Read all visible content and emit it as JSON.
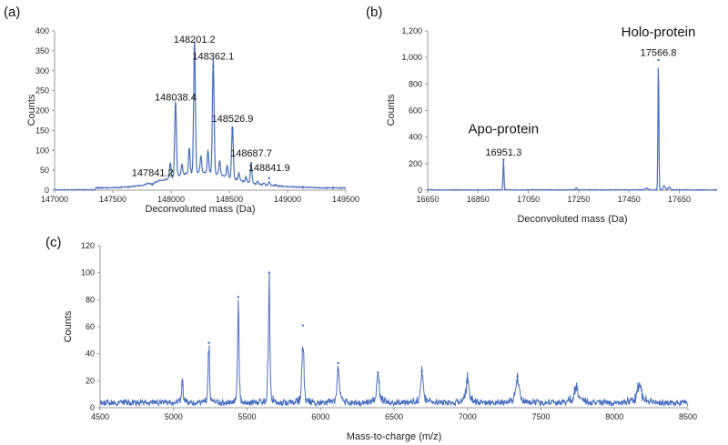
{
  "chart_data": [
    {
      "panel": "(a)",
      "type": "line",
      "xlabel": "Deconvoluted mass (Da)",
      "ylabel": "Counts",
      "xlim": [
        147000,
        149500
      ],
      "ylim": [
        0,
        400
      ],
      "xticks": [
        "147000",
        "147500",
        "148000",
        "148500",
        "149000",
        "149500"
      ],
      "yticks": [
        "0",
        "50",
        "100",
        "150",
        "200",
        "250",
        "300",
        "350",
        "400"
      ],
      "color": "#4a6fc1",
      "peaks": [
        {
          "x": 147841.2,
          "y": 15
        },
        {
          "x": 148038.4,
          "y": 210
        },
        {
          "x": 148201.2,
          "y": 355
        },
        {
          "x": 148362.1,
          "y": 310
        },
        {
          "x": 148526.9,
          "y": 155
        },
        {
          "x": 148687.7,
          "y": 68
        },
        {
          "x": 148841.9,
          "y": 30
        }
      ],
      "annotations": [
        {
          "text": "147841.2",
          "x": 147841.2,
          "y": 35
        },
        {
          "text": "148038.4",
          "x": 148038.4,
          "y": 225
        },
        {
          "text": "148201.2",
          "x": 148201.2,
          "y": 370
        },
        {
          "text": "148362.1",
          "x": 148362.1,
          "y": 328
        },
        {
          "text": "148526.9",
          "x": 148526.9,
          "y": 172
        },
        {
          "text": "148687.7",
          "x": 148687.7,
          "y": 85
        },
        {
          "text": "148841.9",
          "x": 148841.9,
          "y": 48
        }
      ]
    },
    {
      "panel": "(b)",
      "type": "line",
      "xlabel": "Deconvoluted mass (Da)",
      "ylabel": "Counts",
      "xlim": [
        16650,
        17800
      ],
      "ylim": [
        0,
        1200
      ],
      "xticks": [
        "16650",
        "16850",
        "17050",
        "17250",
        "17450",
        "17650"
      ],
      "yticks": [
        "0",
        "200",
        "400",
        "600",
        "800",
        "1,000",
        "1,200"
      ],
      "color": "#4a6fc1",
      "peaks": [
        {
          "x": 16951.3,
          "y": 230
        },
        {
          "x": 17566.8,
          "y": 980
        }
      ],
      "annotations": [
        {
          "text": "Apo-protein",
          "x": 16951.3,
          "y": 430,
          "size": "large"
        },
        {
          "text": "16951.3",
          "x": 16951.3,
          "y": 260,
          "size": "small"
        },
        {
          "text": "Holo-protein",
          "x": 17566.8,
          "y": 1160,
          "size": "large"
        },
        {
          "text": "17566.8",
          "x": 17566.8,
          "y": 1010,
          "size": "small"
        }
      ]
    },
    {
      "panel": "(c)",
      "type": "line",
      "xlabel": "Mass-to-charge (m/z)",
      "ylabel": "Counts",
      "xlim": [
        4500,
        8500
      ],
      "ylim": [
        0,
        120
      ],
      "xticks": [
        "4500",
        "5000",
        "5500",
        "6000",
        "6500",
        "7000",
        "7500",
        "8000",
        "8500"
      ],
      "yticks": [
        "0",
        "20",
        "40",
        "60",
        "80",
        "100",
        "120"
      ],
      "color": "#4a6fc1",
      "peaks": [
        {
          "x": 5060,
          "y": 17
        },
        {
          "x": 5240,
          "y": 48
        },
        {
          "x": 5440,
          "y": 82
        },
        {
          "x": 5650,
          "y": 100
        },
        {
          "x": 5880,
          "y": 61
        },
        {
          "x": 6120,
          "y": 33
        },
        {
          "x": 6390,
          "y": 26
        },
        {
          "x": 6690,
          "y": 27
        },
        {
          "x": 7000,
          "y": 21
        },
        {
          "x": 7340,
          "y": 23
        },
        {
          "x": 7740,
          "y": 13
        },
        {
          "x": 8170,
          "y": 16
        }
      ]
    }
  ]
}
